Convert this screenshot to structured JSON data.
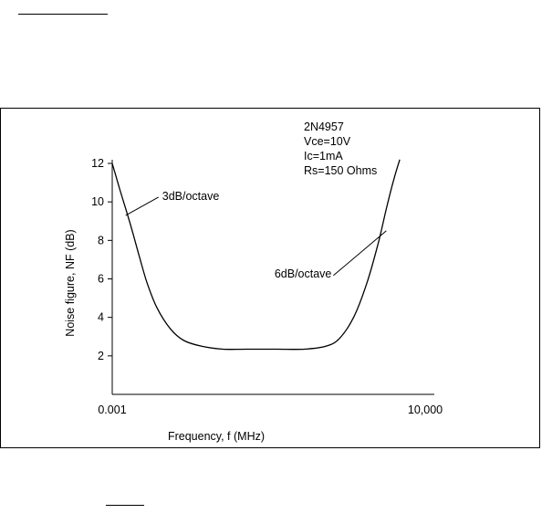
{
  "page": {
    "background": "#ffffff",
    "rule_color": "#000000"
  },
  "chart_data": {
    "type": "line",
    "title": "",
    "xlabel": "Frequency, f (MHz)",
    "ylabel": "Noise figure, NF (dB)",
    "x_scale": "log",
    "xlim": [
      0.001,
      10000
    ],
    "x_ticks": [
      "0.001",
      "10,000"
    ],
    "ylim": [
      0,
      12
    ],
    "y_ticks": [
      2,
      4,
      6,
      8,
      10,
      12
    ],
    "grid": false,
    "legend": "none",
    "line_color": "#000000",
    "series": [
      {
        "x": [
          0.001,
          0.0015,
          0.0025,
          0.004,
          0.006,
          0.01,
          0.02,
          0.04,
          0.1,
          0.3,
          1,
          5,
          20,
          60,
          120,
          250,
          500,
          900,
          1400,
          2000,
          2700
        ],
        "y": [
          12,
          10.6,
          8.9,
          7.2,
          5.8,
          4.5,
          3.4,
          2.8,
          2.5,
          2.35,
          2.35,
          2.35,
          2.35,
          2.5,
          2.9,
          4,
          5.8,
          7.9,
          9.8,
          11.2,
          12.2
        ]
      }
    ],
    "conditions": [
      "2N4957",
      "Vce=10V",
      "Ic=1mA",
      "Rs=150 Ohms"
    ],
    "annotations": [
      {
        "text": "3dB/octave",
        "x": 0.002,
        "y": 9.3
      },
      {
        "text": "6dB/octave",
        "x": 1350,
        "y": 8.5
      }
    ]
  }
}
